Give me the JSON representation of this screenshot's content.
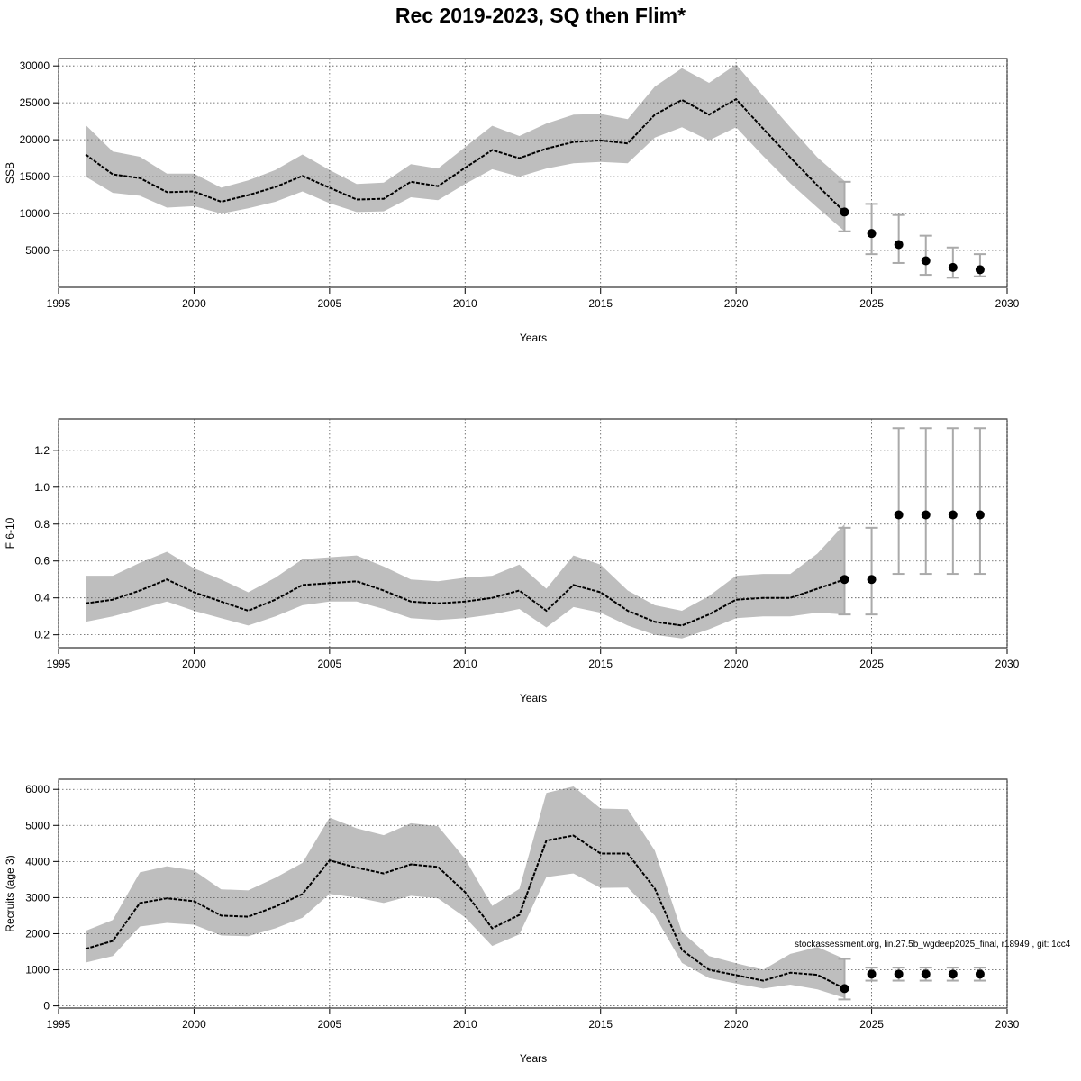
{
  "title": "Rec 2019-2023, SQ then Flim*",
  "footnote": "stockassessment.org, lin.27.5b_wgdeep2025_final, r18949 , git: 1cc4",
  "colors": {
    "band": "#bebebe",
    "errorbar": "#aaaaaa",
    "line": "#000000",
    "grid": "#555555"
  },
  "chart_data": [
    {
      "type": "line",
      "name": "ssb-panel",
      "ylabel": "SSB",
      "xlabel": "Years",
      "xlim": [
        1995,
        2030
      ],
      "ylim": [
        0,
        31000
      ],
      "xticks": [
        1995,
        2000,
        2005,
        2010,
        2015,
        2020,
        2025,
        2030
      ],
      "yticks": [
        5000,
        10000,
        15000,
        20000,
        25000,
        30000
      ],
      "grid": true,
      "series": [
        {
          "role": "estimate",
          "x": [
            1996,
            1997,
            1998,
            1999,
            2000,
            2001,
            2002,
            2003,
            2004,
            2005,
            2006,
            2007,
            2008,
            2009,
            2010,
            2011,
            2012,
            2013,
            2014,
            2015,
            2016,
            2017,
            2018,
            2019,
            2020,
            2021,
            2022,
            2023,
            2024
          ],
          "y": [
            18000,
            15300,
            14800,
            12900,
            13000,
            11600,
            12500,
            13600,
            15100,
            13500,
            11900,
            12000,
            14300,
            13700,
            16200,
            18600,
            17500,
            18800,
            19700,
            19900,
            19500,
            23400,
            25400,
            23400,
            25500,
            21500,
            17600,
            13800,
            10200
          ],
          "lower": [
            15000,
            12800,
            12400,
            10800,
            11000,
            10000,
            10700,
            11600,
            13000,
            11400,
            10200,
            10300,
            12200,
            11800,
            14000,
            16000,
            15000,
            16100,
            16800,
            17000,
            16800,
            20300,
            21700,
            19900,
            21700,
            17800,
            14100,
            10800,
            7600
          ],
          "upper": [
            22000,
            18400,
            17700,
            15400,
            15400,
            13500,
            14500,
            15900,
            18000,
            15900,
            14000,
            14200,
            16700,
            16100,
            19000,
            21900,
            20500,
            22200,
            23400,
            23500,
            22800,
            27200,
            29700,
            27700,
            30200,
            25900,
            21700,
            17600,
            14400
          ]
        }
      ],
      "forecast": {
        "x": [
          2024,
          2025,
          2026,
          2027,
          2028,
          2029
        ],
        "y": [
          10200,
          7300,
          5800,
          3600,
          2700,
          2400
        ],
        "lower": [
          7600,
          4500,
          3300,
          1700,
          1300,
          1500
        ],
        "upper": [
          14300,
          11300,
          9800,
          7000,
          5400,
          4500
        ]
      }
    },
    {
      "type": "line",
      "name": "fbar-panel",
      "ylabel": "F̄ 6-10",
      "xlabel": "Years",
      "xlim": [
        1995,
        2030
      ],
      "ylim": [
        0.13,
        1.37
      ],
      "xticks": [
        1995,
        2000,
        2005,
        2010,
        2015,
        2020,
        2025,
        2030
      ],
      "yticks": [
        0.2,
        0.4,
        0.6,
        0.8,
        1.0,
        1.2
      ],
      "ytick_labels": [
        "0.2",
        "0.4",
        "0.6",
        "0.8",
        "1.0",
        "1.2"
      ],
      "grid": true,
      "series": [
        {
          "role": "estimate",
          "x": [
            1996,
            1997,
            1998,
            1999,
            2000,
            2001,
            2002,
            2003,
            2004,
            2005,
            2006,
            2007,
            2008,
            2009,
            2010,
            2011,
            2012,
            2013,
            2014,
            2015,
            2016,
            2017,
            2018,
            2019,
            2020,
            2021,
            2022,
            2023,
            2024
          ],
          "y": [
            0.37,
            0.39,
            0.44,
            0.5,
            0.43,
            0.38,
            0.33,
            0.39,
            0.47,
            0.48,
            0.49,
            0.44,
            0.38,
            0.37,
            0.38,
            0.4,
            0.44,
            0.33,
            0.47,
            0.43,
            0.33,
            0.27,
            0.25,
            0.31,
            0.39,
            0.4,
            0.4,
            0.45,
            0.5
          ],
          "lower": [
            0.27,
            0.3,
            0.34,
            0.38,
            0.33,
            0.29,
            0.25,
            0.3,
            0.36,
            0.38,
            0.38,
            0.34,
            0.29,
            0.28,
            0.29,
            0.31,
            0.34,
            0.24,
            0.35,
            0.32,
            0.25,
            0.2,
            0.18,
            0.23,
            0.29,
            0.3,
            0.3,
            0.32,
            0.31
          ],
          "upper": [
            0.52,
            0.52,
            0.59,
            0.65,
            0.56,
            0.5,
            0.43,
            0.51,
            0.61,
            0.62,
            0.63,
            0.57,
            0.5,
            0.49,
            0.51,
            0.52,
            0.58,
            0.45,
            0.63,
            0.58,
            0.44,
            0.36,
            0.33,
            0.41,
            0.52,
            0.53,
            0.53,
            0.64,
            0.8
          ]
        }
      ],
      "forecast": {
        "x": [
          2024,
          2025,
          2026,
          2027,
          2028,
          2029
        ],
        "y": [
          0.5,
          0.5,
          0.85,
          0.85,
          0.85,
          0.85
        ],
        "lower": [
          0.31,
          0.31,
          0.53,
          0.53,
          0.53,
          0.53
        ],
        "upper": [
          0.78,
          0.78,
          1.32,
          1.32,
          1.32,
          1.32
        ]
      }
    },
    {
      "type": "line",
      "name": "recruits-panel",
      "ylabel": "Recruits (age 3)",
      "xlabel": "Years",
      "xlim": [
        1995,
        2030
      ],
      "ylim": [
        -60,
        6280
      ],
      "xticks": [
        1995,
        2000,
        2005,
        2010,
        2015,
        2020,
        2025,
        2030
      ],
      "yticks": [
        0,
        1000,
        2000,
        3000,
        4000,
        5000,
        6000
      ],
      "grid": true,
      "series": [
        {
          "role": "estimate",
          "x": [
            1996,
            1997,
            1998,
            1999,
            2000,
            2001,
            2002,
            2003,
            2004,
            2005,
            2006,
            2007,
            2008,
            2009,
            2010,
            2011,
            2012,
            2013,
            2014,
            2015,
            2016,
            2017,
            2018,
            2019,
            2020,
            2021,
            2022,
            2023,
            2024
          ],
          "y": [
            1580,
            1800,
            2850,
            2980,
            2900,
            2500,
            2470,
            2750,
            3100,
            4030,
            3830,
            3670,
            3920,
            3850,
            3150,
            2150,
            2520,
            4580,
            4720,
            4220,
            4220,
            3250,
            1550,
            1000,
            850,
            700,
            920,
            860,
            480
          ],
          "lower": [
            1200,
            1380,
            2200,
            2300,
            2250,
            1950,
            1930,
            2150,
            2440,
            3100,
            3000,
            2850,
            3050,
            2980,
            2450,
            1660,
            1980,
            3570,
            3670,
            3270,
            3280,
            2500,
            1190,
            770,
            620,
            480,
            590,
            460,
            220
          ],
          "upper": [
            2080,
            2380,
            3700,
            3870,
            3750,
            3230,
            3200,
            3550,
            3960,
            5220,
            4920,
            4730,
            5060,
            4980,
            4070,
            2770,
            3240,
            5900,
            6080,
            5470,
            5450,
            4300,
            2050,
            1380,
            1180,
            1000,
            1440,
            1630,
            1300
          ]
        }
      ],
      "forecast": {
        "x": [
          2024,
          2025,
          2026,
          2027,
          2028,
          2029
        ],
        "y": [
          480,
          880,
          880,
          880,
          880,
          880
        ],
        "lower": [
          180,
          700,
          700,
          700,
          700,
          700
        ],
        "upper": [
          1300,
          1060,
          1060,
          1060,
          1060,
          1060
        ]
      }
    }
  ]
}
